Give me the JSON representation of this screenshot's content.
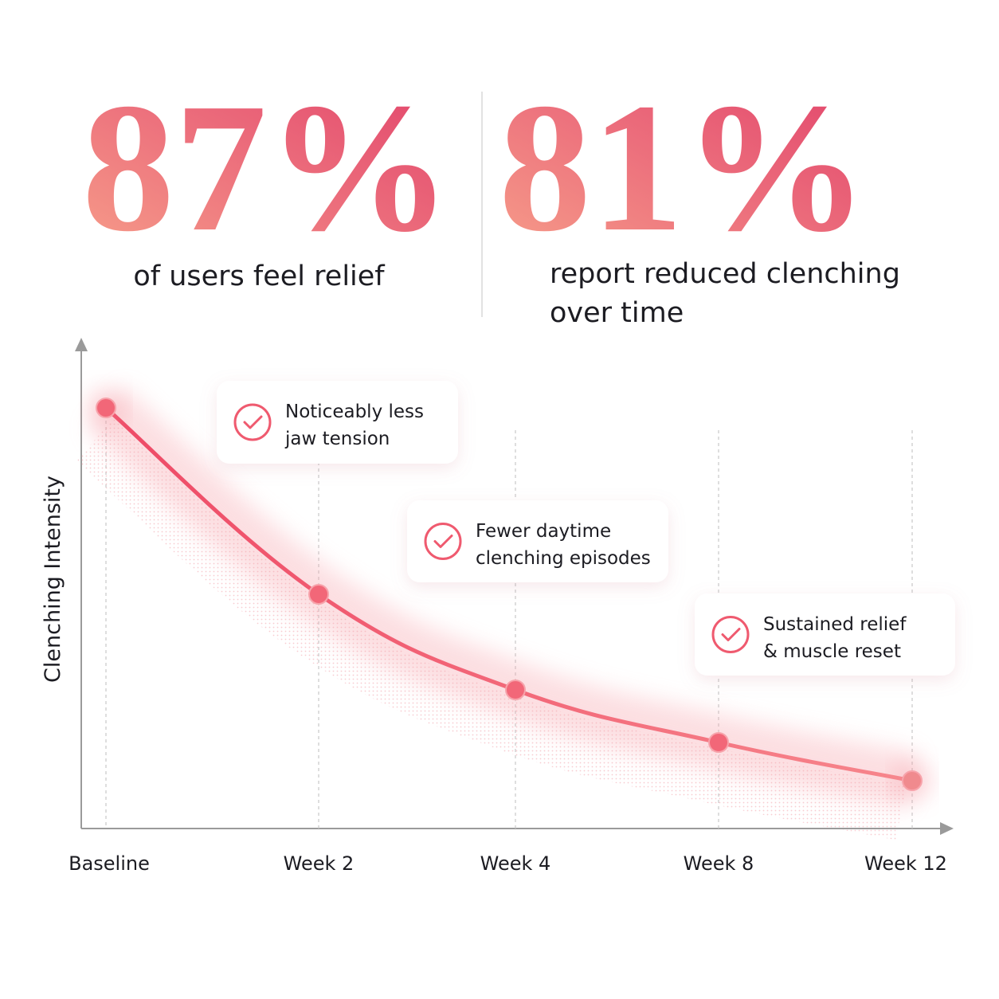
{
  "stats": [
    {
      "value": "87%",
      "label": [
        "of users feel relief"
      ]
    },
    {
      "value": "81%",
      "label": [
        "report reduced clenching",
        "over time"
      ]
    }
  ],
  "chart_data": {
    "type": "line",
    "y_label": "Clenching Intensity",
    "categories": [
      "Baseline",
      "Week 2",
      "Week 4",
      "Week 8",
      "Week 12"
    ],
    "series": [
      {
        "name": "Clenching Intensity",
        "color": "#f0556e",
        "values": [
          88,
          49,
          29,
          18,
          10
        ]
      }
    ],
    "ylim": [
      0,
      100
    ],
    "annotations": [
      {
        "text": [
          "Noticeably less",
          "jaw tension"
        ]
      },
      {
        "text": [
          "Fewer daytime",
          "clenching episodes"
        ]
      },
      {
        "text": [
          "Sustained relief",
          "& muscle reset"
        ]
      }
    ]
  }
}
